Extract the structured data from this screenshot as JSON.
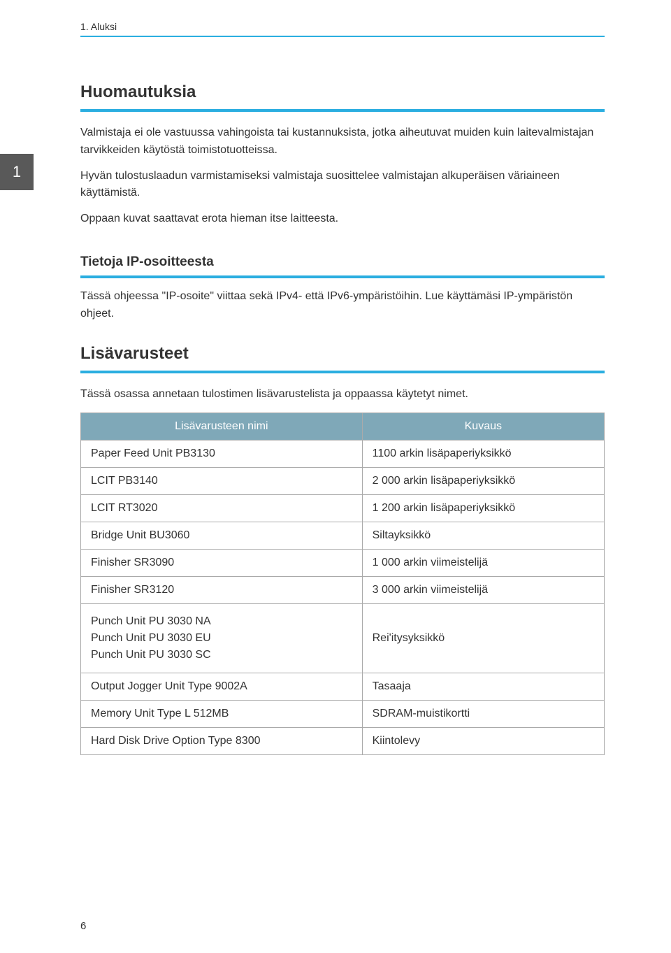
{
  "header": {
    "breadcrumb": "1. Aluksi"
  },
  "tab": {
    "number": "1"
  },
  "section_main": {
    "title": "Huomautuksia",
    "p1": "Valmistaja ei ole vastuussa vahingoista tai kustannuksista, jotka aiheutuvat muiden kuin laitevalmistajan tarvikkeiden käytöstä toimistotuotteissa.",
    "p2": "Hyvän tulostuslaadun varmistamiseksi valmistaja suosittelee valmistajan alkuperäisen väriaineen käyttämistä.",
    "p3": "Oppaan kuvat saattavat erota hieman itse laitteesta."
  },
  "section_ip": {
    "title": "Tietoja IP-osoitteesta",
    "p1": "Tässä ohjeessa \"IP-osoite\" viittaa sekä IPv4- että IPv6-ympäristöihin. Lue käyttämäsi IP-ympäristön ohjeet."
  },
  "section_acc": {
    "title": "Lisävarusteet",
    "intro": "Tässä osassa annetaan tulostimen lisävarustelista ja oppaassa käytetyt nimet."
  },
  "table": {
    "col1_header": "Lisävarusteen nimi",
    "col2_header": "Kuvaus",
    "rows": [
      {
        "c1": "Paper Feed Unit PB3130",
        "c2": "1100 arkin lisäpaperiyksikkö"
      },
      {
        "c1": "LCIT PB3140",
        "c2": "2 000 arkin lisäpaperiyksikkö"
      },
      {
        "c1": "LCIT RT3020",
        "c2": "1 200 arkin lisäpaperiyksikkö"
      },
      {
        "c1": "Bridge Unit BU3060",
        "c2": "Siltayksikkö"
      },
      {
        "c1": "Finisher SR3090",
        "c2": "1 000 arkin viimeistelijä"
      },
      {
        "c1": "Finisher SR3120",
        "c2": "3 000 arkin viimeistelijä"
      }
    ],
    "multi_row": {
      "c1a": "Punch Unit PU 3030 NA",
      "c1b": "Punch Unit PU 3030 EU",
      "c1c": "Punch Unit PU 3030 SC",
      "c2": "Rei'itysyksikkö"
    },
    "rows2": [
      {
        "c1": "Output Jogger Unit Type 9002A",
        "c2": "Tasaaja"
      },
      {
        "c1": "Memory Unit Type L 512MB",
        "c2": "SDRAM-muistikortti"
      },
      {
        "c1": "Hard Disk Drive Option Type 8300",
        "c2": "Kiintolevy"
      }
    ]
  },
  "footer": {
    "page_number": "6"
  },
  "colors": {
    "accent": "#2baee0",
    "tab_bg": "#595959",
    "th_bg": "#7fa8b8",
    "border": "#aaaaaa",
    "text": "#333333"
  }
}
